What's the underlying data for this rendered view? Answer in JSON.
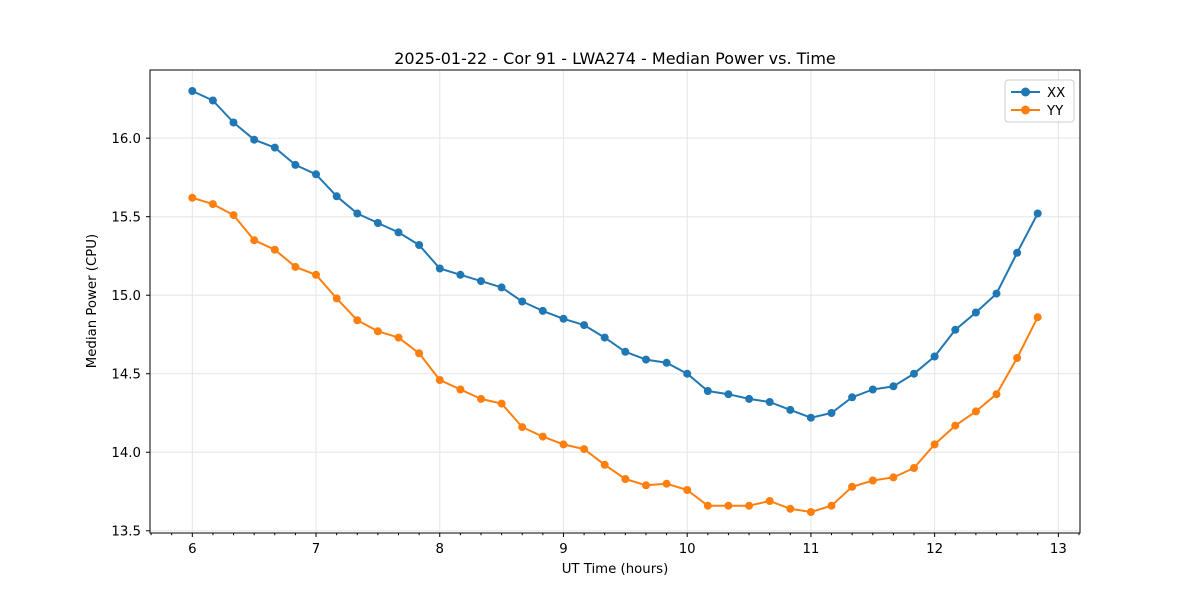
{
  "chart_data": {
    "type": "line",
    "title": "2025-01-22 - Cor 91 - LWA274 - Median Power vs. Time",
    "xlabel": "UT Time (hours)",
    "ylabel": "Median Power (CPU)",
    "xlim": [
      5.658,
      13.175
    ],
    "ylim": [
      13.486,
      16.434
    ],
    "xticks": [
      6,
      7,
      8,
      9,
      10,
      11,
      12,
      13
    ],
    "xtick_labels": [
      "6",
      "7",
      "8",
      "9",
      "10",
      "11",
      "12",
      "13"
    ],
    "yticks": [
      13.5,
      14.0,
      14.5,
      15.0,
      15.5,
      16.0
    ],
    "ytick_labels": [
      "13.5",
      "14.0",
      "14.5",
      "15.0",
      "15.5",
      "16.0"
    ],
    "minor_xtick_step_hours": 0.16667,
    "grid": true,
    "legend_position": "upper right",
    "x": [
      6.0,
      6.1667,
      6.3333,
      6.5,
      6.6667,
      6.8333,
      7.0,
      7.1667,
      7.3333,
      7.5,
      7.6667,
      7.8333,
      8.0,
      8.1667,
      8.3333,
      8.5,
      8.6667,
      8.8333,
      9.0,
      9.1667,
      9.3333,
      9.5,
      9.6667,
      9.8333,
      10.0,
      10.1667,
      10.3333,
      10.5,
      10.6667,
      10.8333,
      11.0,
      11.1667,
      11.3333,
      11.5,
      11.6667,
      11.8333,
      12.0,
      12.1667,
      12.3333,
      12.5,
      12.6667,
      12.8333
    ],
    "series": [
      {
        "name": "XX",
        "color": "#1f77b4",
        "marker": "circle",
        "values": [
          16.3,
          16.24,
          16.1,
          15.99,
          15.94,
          15.83,
          15.77,
          15.63,
          15.52,
          15.46,
          15.4,
          15.32,
          15.17,
          15.13,
          15.09,
          15.05,
          14.96,
          14.9,
          14.85,
          14.81,
          14.73,
          14.64,
          14.59,
          14.57,
          14.5,
          14.39,
          14.37,
          14.34,
          14.32,
          14.27,
          14.22,
          14.25,
          14.35,
          14.4,
          14.42,
          14.5,
          14.61,
          14.78,
          14.89,
          15.01,
          15.27,
          15.52
        ]
      },
      {
        "name": "YY",
        "color": "#ff7f0e",
        "marker": "circle",
        "values": [
          15.62,
          15.58,
          15.51,
          15.35,
          15.29,
          15.18,
          15.13,
          14.98,
          14.84,
          14.77,
          14.73,
          14.63,
          14.46,
          14.4,
          14.34,
          14.31,
          14.16,
          14.1,
          14.05,
          14.02,
          13.92,
          13.83,
          13.79,
          13.8,
          13.76,
          13.66,
          13.66,
          13.66,
          13.69,
          13.64,
          13.62,
          13.66,
          13.78,
          13.82,
          13.84,
          13.9,
          14.05,
          14.17,
          14.26,
          14.37,
          14.6,
          14.86
        ]
      }
    ]
  },
  "colors": {
    "background": "#ffffff",
    "grid": "#e5e5e5",
    "spine": "#000000",
    "tick": "#000000",
    "text": "#000000",
    "legend_border": "#cccccc",
    "legend_background": "rgba(255,255,255,0.8)"
  }
}
